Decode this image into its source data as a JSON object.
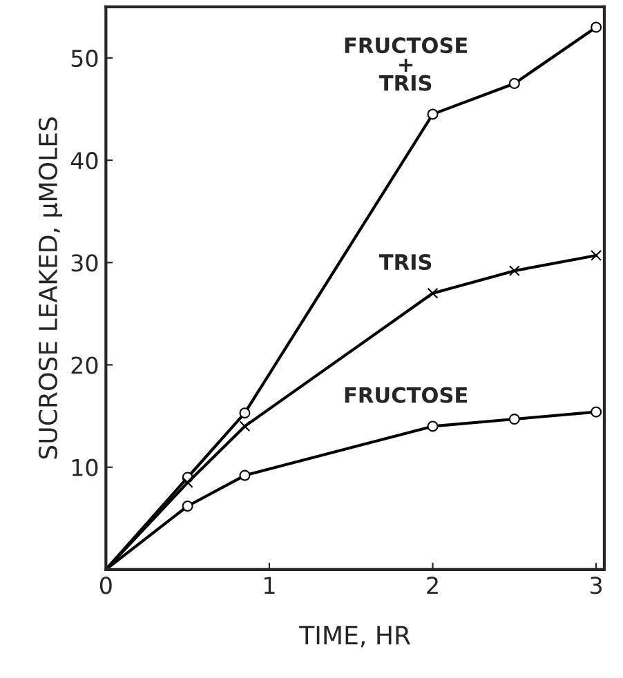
{
  "chart_data": {
    "type": "line",
    "xlabel": "TIME, HR",
    "ylabel": "SUCROSE LEAKED, μMOLES",
    "xlim": [
      0,
      3.05
    ],
    "ylim": [
      0,
      55
    ],
    "xticks": [
      0,
      1,
      2,
      3
    ],
    "yticks": [
      10,
      20,
      30,
      40,
      50
    ],
    "grid": false,
    "legend": false,
    "series": [
      {
        "name": "FRUCTOSE\n+\nTRIS",
        "color": "#000000",
        "marker": "circle",
        "x": [
          0,
          0.5,
          0.85,
          2,
          2.5,
          3
        ],
        "values": [
          0,
          9,
          15.3,
          44.5,
          47.5,
          53
        ]
      },
      {
        "name": "TRIS",
        "color": "#000000",
        "marker": "cross",
        "x": [
          0,
          0.5,
          0.85,
          2,
          2.5,
          3
        ],
        "values": [
          0,
          8.5,
          14,
          27,
          29.2,
          30.7
        ]
      },
      {
        "name": "FRUCTOSE",
        "color": "#000000",
        "marker": "circle",
        "x": [
          0,
          0.5,
          0.85,
          2,
          2.5,
          3
        ],
        "values": [
          0,
          6.2,
          9.2,
          14,
          14.7,
          15.4
        ]
      }
    ]
  }
}
